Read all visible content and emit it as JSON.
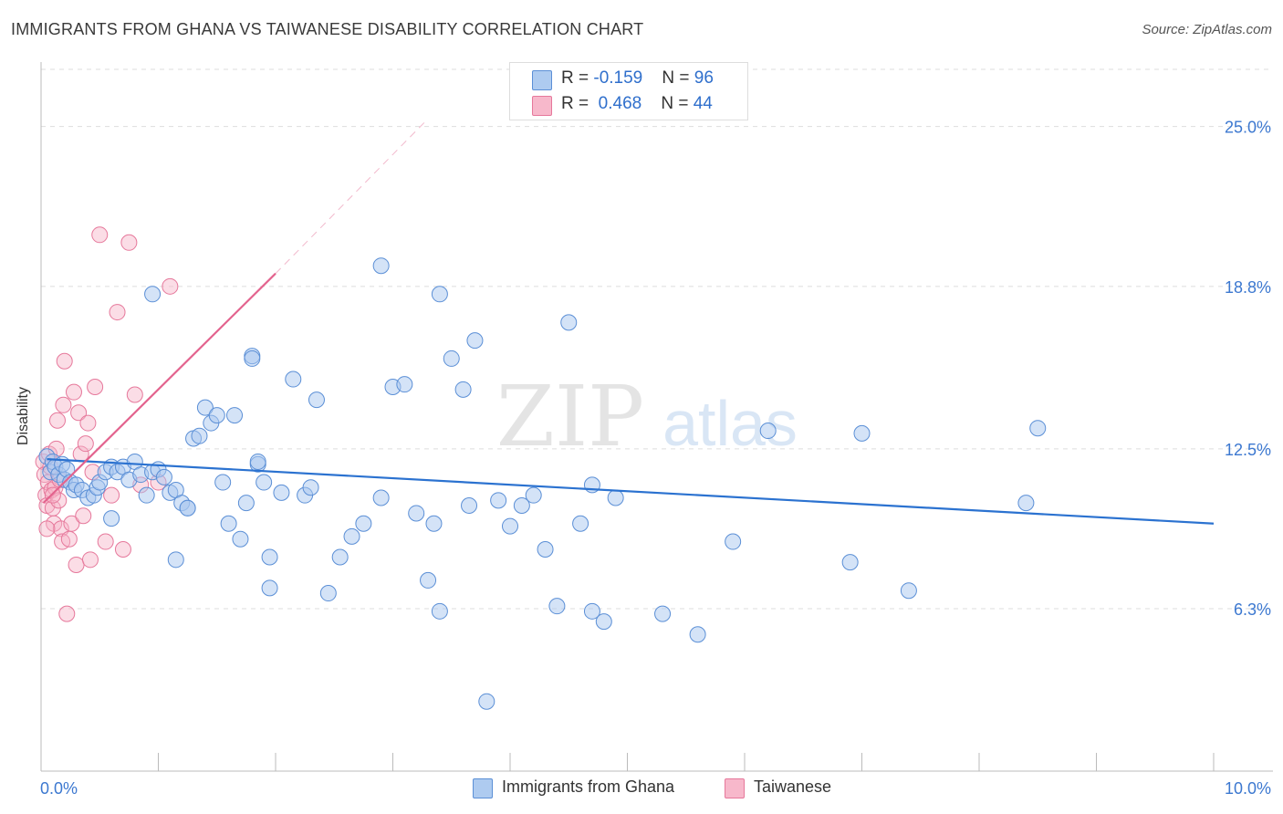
{
  "title": "IMMIGRANTS FROM GHANA VS TAIWANESE DISABILITY CORRELATION CHART",
  "source": "Source: ZipAtlas.com",
  "watermark": {
    "zip": "ZIP",
    "atlas": "atlas"
  },
  "legend_top": {
    "rows": [
      {
        "r_label": "R = ",
        "r_value": "-0.159",
        "n_label": "N = ",
        "n_value": "96",
        "color": "#aecbf0"
      },
      {
        "r_label": "R = ",
        "r_value": "0.468",
        "n_label": "N = ",
        "n_value": "44",
        "color": "#f7b8cb"
      }
    ]
  },
  "legend_bottom": [
    {
      "label": "Immigrants from Ghana",
      "color": "#aecbf0"
    },
    {
      "label": "Taiwanese",
      "color": "#f7b8cb"
    }
  ],
  "colors": {
    "blue_fill": "#a9c8ef",
    "blue_stroke": "#5b8fd6",
    "blue_line": "#2b72d0",
    "pink_fill": "#f6b3c7",
    "pink_stroke": "#e6789b",
    "pink_line": "#e3638e",
    "tick_label": "#3c78d0",
    "grid": "#dddddd"
  },
  "chart_data": {
    "type": "scatter",
    "title": "IMMIGRANTS FROM GHANA VS TAIWANESE DISABILITY CORRELATION CHART",
    "xlabel": "",
    "ylabel": "Disability",
    "xlim": [
      0,
      10
    ],
    "ylim": [
      0,
      27.5
    ],
    "x_tick_labels": [
      {
        "value": 0,
        "label": "0.0%"
      },
      {
        "value": 10,
        "label": "10.0%"
      }
    ],
    "y_ticks": [
      {
        "value": 6.3,
        "label": "6.3%"
      },
      {
        "value": 12.5,
        "label": "12.5%"
      },
      {
        "value": 18.8,
        "label": "18.8%"
      },
      {
        "value": 25.0,
        "label": "25.0%"
      }
    ],
    "grid": "horizontal dashed",
    "legend_position": "top-center and bottom",
    "series": [
      {
        "name": "Immigrants from Ghana",
        "points": [
          [
            0.05,
            12.2
          ],
          [
            0.08,
            11.6
          ],
          [
            0.1,
            12.0
          ],
          [
            0.12,
            11.8
          ],
          [
            0.15,
            11.5
          ],
          [
            0.18,
            11.9
          ],
          [
            0.2,
            11.3
          ],
          [
            0.22,
            11.7
          ],
          [
            0.25,
            11.2
          ],
          [
            0.28,
            10.9
          ],
          [
            0.3,
            11.1
          ],
          [
            0.35,
            10.9
          ],
          [
            0.4,
            10.6
          ],
          [
            0.45,
            10.7
          ],
          [
            0.48,
            11.0
          ],
          [
            0.5,
            11.2
          ],
          [
            0.55,
            11.6
          ],
          [
            0.6,
            11.8
          ],
          [
            0.65,
            11.6
          ],
          [
            0.7,
            11.8
          ],
          [
            0.75,
            11.3
          ],
          [
            0.8,
            12.0
          ],
          [
            0.85,
            11.5
          ],
          [
            0.9,
            10.7
          ],
          [
            0.95,
            11.6
          ],
          [
            1.0,
            11.7
          ],
          [
            1.05,
            11.4
          ],
          [
            1.1,
            10.8
          ],
          [
            1.15,
            10.9
          ],
          [
            1.2,
            10.4
          ],
          [
            1.25,
            10.2
          ],
          [
            1.3,
            12.9
          ],
          [
            1.35,
            13.0
          ],
          [
            1.4,
            14.1
          ],
          [
            1.45,
            13.5
          ],
          [
            1.5,
            13.8
          ],
          [
            1.55,
            11.2
          ],
          [
            1.6,
            9.6
          ],
          [
            1.65,
            13.8
          ],
          [
            1.7,
            9.0
          ],
          [
            1.75,
            10.4
          ],
          [
            1.8,
            16.1
          ],
          [
            1.85,
            11.9
          ],
          [
            1.9,
            11.2
          ],
          [
            1.95,
            7.1
          ],
          [
            2.05,
            10.8
          ],
          [
            2.15,
            15.2
          ],
          [
            2.25,
            10.7
          ],
          [
            2.35,
            14.4
          ],
          [
            2.45,
            6.9
          ],
          [
            2.55,
            8.3
          ],
          [
            2.65,
            9.1
          ],
          [
            2.75,
            9.6
          ],
          [
            2.9,
            10.6
          ],
          [
            3.0,
            14.9
          ],
          [
            3.1,
            15.0
          ],
          [
            3.2,
            10.0
          ],
          [
            3.3,
            7.4
          ],
          [
            3.4,
            6.2
          ],
          [
            3.5,
            16.0
          ],
          [
            3.6,
            14.8
          ],
          [
            3.7,
            16.7
          ],
          [
            3.8,
            2.7
          ],
          [
            3.9,
            10.5
          ],
          [
            4.0,
            9.5
          ],
          [
            4.1,
            10.3
          ],
          [
            4.2,
            10.7
          ],
          [
            4.3,
            8.6
          ],
          [
            4.4,
            6.4
          ],
          [
            4.5,
            17.4
          ],
          [
            4.6,
            9.6
          ],
          [
            4.7,
            6.2
          ],
          [
            4.8,
            5.8
          ],
          [
            4.9,
            10.6
          ],
          [
            5.3,
            6.1
          ],
          [
            5.9,
            8.9
          ],
          [
            6.2,
            13.2
          ],
          [
            6.9,
            8.1
          ],
          [
            7.0,
            13.1
          ],
          [
            7.4,
            7.0
          ],
          [
            8.4,
            10.4
          ],
          [
            8.5,
            13.3
          ],
          [
            0.95,
            18.5
          ],
          [
            1.85,
            12.0
          ],
          [
            2.9,
            19.6
          ],
          [
            3.4,
            18.5
          ],
          [
            1.8,
            16.0
          ],
          [
            4.7,
            11.1
          ],
          [
            1.15,
            8.2
          ],
          [
            1.95,
            8.3
          ],
          [
            0.6,
            9.8
          ],
          [
            2.3,
            11.0
          ],
          [
            3.35,
            9.6
          ],
          [
            5.6,
            5.3
          ],
          [
            3.65,
            10.3
          ],
          [
            1.25,
            10.2
          ]
        ]
      },
      {
        "name": "Taiwanese",
        "points": [
          [
            0.02,
            12.0
          ],
          [
            0.03,
            11.5
          ],
          [
            0.04,
            10.7
          ],
          [
            0.05,
            10.3
          ],
          [
            0.06,
            11.2
          ],
          [
            0.07,
            12.3
          ],
          [
            0.08,
            11.8
          ],
          [
            0.09,
            10.9
          ],
          [
            0.1,
            10.2
          ],
          [
            0.11,
            9.6
          ],
          [
            0.12,
            11.0
          ],
          [
            0.13,
            12.5
          ],
          [
            0.14,
            13.6
          ],
          [
            0.15,
            10.5
          ],
          [
            0.16,
            11.3
          ],
          [
            0.17,
            9.4
          ],
          [
            0.18,
            8.9
          ],
          [
            0.19,
            14.2
          ],
          [
            0.2,
            15.9
          ],
          [
            0.22,
            6.1
          ],
          [
            0.24,
            9.0
          ],
          [
            0.26,
            9.6
          ],
          [
            0.28,
            14.7
          ],
          [
            0.3,
            8.0
          ],
          [
            0.32,
            13.9
          ],
          [
            0.34,
            12.3
          ],
          [
            0.36,
            9.9
          ],
          [
            0.38,
            12.7
          ],
          [
            0.4,
            13.5
          ],
          [
            0.42,
            8.2
          ],
          [
            0.44,
            11.6
          ],
          [
            0.46,
            14.9
          ],
          [
            0.5,
            20.8
          ],
          [
            0.55,
            8.9
          ],
          [
            0.6,
            10.7
          ],
          [
            0.65,
            17.8
          ],
          [
            0.7,
            8.6
          ],
          [
            0.75,
            20.5
          ],
          [
            0.8,
            14.6
          ],
          [
            0.85,
            11.1
          ],
          [
            1.0,
            11.2
          ],
          [
            1.1,
            18.8
          ],
          [
            0.05,
            9.4
          ],
          [
            0.1,
            10.7
          ]
        ]
      }
    ],
    "trend_lines": [
      {
        "series": "Immigrants from Ghana",
        "x": [
          0.05,
          10.0
        ],
        "y": [
          12.1,
          9.6
        ],
        "style": "solid"
      },
      {
        "series": "Taiwanese",
        "x": [
          0.02,
          2.0
        ],
        "y": [
          10.4,
          19.3
        ],
        "style": "solid",
        "extension_x": [
          2.0,
          3.3
        ],
        "extension_y": [
          19.3,
          25.3
        ],
        "extension_style": "dashed"
      }
    ]
  }
}
